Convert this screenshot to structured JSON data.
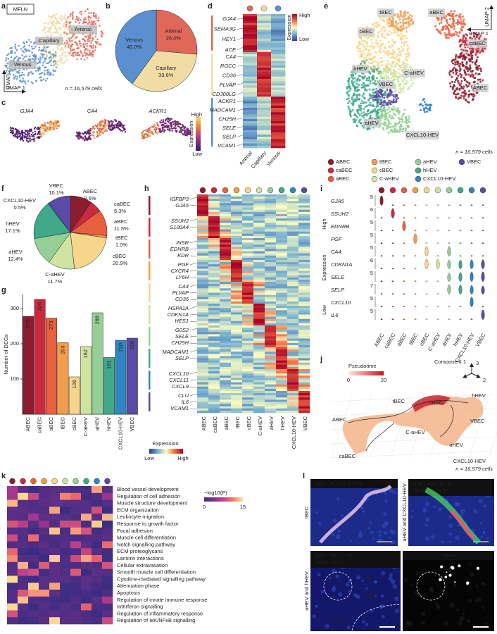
{
  "panels": {
    "a": {
      "letter": "a",
      "box": "MFLN",
      "clusters": [
        "Arterial",
        "Capillary",
        "Venous"
      ],
      "x_axis": "UMAP 1",
      "y_axis": "UMAP 2",
      "n": "n = 16,579 cells"
    },
    "b": {
      "letter": "b"
    },
    "c": {
      "letter": "c",
      "genes": [
        "GJA4",
        "CA4",
        "ACKR1"
      ],
      "legend_title": "Expression",
      "high": "High",
      "low": "Low"
    },
    "d": {
      "letter": "d",
      "gene_groups": [
        [
          "GJA4",
          "SEMA3G",
          "HEY1",
          "ACE"
        ],
        [
          "CA4",
          "RGCC",
          "CD36",
          "PLVAP",
          "CD300LG"
        ],
        [
          "ACKR1",
          "MADCAM1",
          "CH25H",
          "SELE",
          "SELP",
          "VCAM1"
        ]
      ],
      "columns": [
        "Arterial",
        "Capillary",
        "Venous"
      ],
      "legend_title": "Expression",
      "high": "High",
      "low": "Low"
    },
    "e": {
      "letter": "e",
      "labels": [
        "tBEC",
        "aBEC",
        "cBEC",
        "caBEC",
        "hHEV",
        "C-aHEV",
        "VBEC",
        "aHEV",
        "ABEC",
        "CXCL10-HEV"
      ],
      "x_axis": "UMAP 1",
      "y_axis": "UMAP 2",
      "n": "n = 16,579 cells",
      "legend": [
        "ABEC",
        "tBEC",
        "aHEV",
        "VBEC",
        "caBEC",
        "cBEC",
        "hHEV",
        "aBEC",
        "C-aHEV",
        "CXCL10-HEV"
      ]
    },
    "f": {
      "letter": "f"
    },
    "g": {
      "letter": "g"
    },
    "h": {
      "letter": "h",
      "gene_groups": [
        [
          "IGFBP3",
          "GJA5"
        ],
        [
          "SSUH2",
          "S100A4"
        ],
        [
          "INSR",
          "EDNRB",
          "KDR"
        ],
        [
          "PGF",
          "CXCR4",
          "LY6H"
        ],
        [
          "CA4",
          "PLVAP",
          "CD36"
        ],
        [
          "HSPA1A",
          "CDKN1A",
          "HES1"
        ],
        [
          "G0S2",
          "SELE",
          "CH25H"
        ],
        [
          "MADCAM1",
          "SELP"
        ],
        [
          "CXCL10",
          "CXCL11",
          "CXCL9"
        ],
        [
          "CLU",
          "IL6",
          "VCAM1"
        ]
      ],
      "columns": [
        "ABEC",
        "caBEC",
        "aBEC",
        "tBEC",
        "cBEC",
        "C-aHEV",
        "aHEV",
        "hHEV",
        "CXCL10-HEV",
        "VBEC"
      ],
      "legend_title": "Expression",
      "low": "Low",
      "high": "High"
    },
    "i": {
      "letter": "i",
      "genes": [
        "GJA5",
        "SSUH2",
        "EDNRB",
        "PGF",
        "CA4",
        "CDKN1A",
        "SELE",
        "SELP",
        "CXCL10",
        "IL6"
      ],
      "ymax": [
        5,
        6,
        5,
        5,
        5,
        6,
        5,
        7,
        5,
        5
      ],
      "columns": [
        "ABEC",
        "caBEC",
        "aBEC",
        "tBEC",
        "cBEC",
        "C-aHEV",
        "aHEV",
        "hHEV",
        "CXCL10-HEV",
        "VBEC"
      ],
      "y_axis_low": "Low",
      "y_axis": "Expression",
      "y_axis_high": "High"
    },
    "j": {
      "letter": "j",
      "legend_title": "Pseudotime",
      "legend_ticks": [
        0,
        20
      ],
      "component_labels": [
        "Component 1",
        "3",
        "2"
      ],
      "labels": [
        "ABEC",
        "caBEC",
        "tBEC",
        "cBEC",
        "C-aHEV",
        "aHEV",
        "hHEV",
        "VBEC",
        "CXCL10-HEV"
      ],
      "n": "n = 16,579 cells"
    },
    "k": {
      "letter": "k",
      "terms": [
        "Blood vessel development",
        "Regulation of cell adhesion",
        "Muscle structure development",
        "ECM organization",
        "Leukocyte migration",
        "Response to growth factor",
        "Focal adhesion",
        "Muscle cell differentiation",
        "Notch signalling pathway",
        "ECM proteoglycans",
        "Laminin interactions",
        "Cellular extravasation",
        "Smooth muscle cell differentiation",
        "Cytokine-mediated signalling pathway",
        "Attenuation phase",
        "Apoptosis",
        "Regulation of innate immune response",
        "Interferon signalling",
        "Regulation of inflammatory response",
        "Regulation of IκK/NFκB signalling"
      ],
      "legend_title": "−log10(P)",
      "legend_ticks": [
        0,
        15
      ]
    },
    "l": {
      "letter": "l",
      "images": [
        {
          "stains": [
            [
              "DAPI",
              "PLVAP",
              "LY6H"
            ]
          ],
          "side": "tBEC"
        },
        {
          "stains": [
            [
              "DAPI",
              "MECA-79"
            ],
            [
              "SELE",
              "CXCL10"
            ]
          ],
          "side": "aHEV and CXCL10-HEV"
        },
        {
          "stains": [
            [
              "DAPI",
              "MECA-79"
            ],
            [
              "SELE",
              "CD31"
            ]
          ],
          "side": "aHEV and hHEV",
          "regions": [
            "IFR",
            "Follicle",
            "T-zone"
          ]
        },
        {
          "stains": [
            [
              "SELE"
            ]
          ]
        }
      ]
    }
  },
  "chart_data": [
    {
      "type": "pie",
      "categories": [
        "Arterial",
        "Capillary",
        "Venous"
      ],
      "values": [
        26.4,
        33.6,
        40.0
      ],
      "value_labels": [
        "26.4%",
        "33.6%",
        "40.0%"
      ],
      "colors": [
        "#e0685a",
        "#f0dca4",
        "#5b8fd0"
      ]
    },
    {
      "type": "pie",
      "categories": [
        "ABEC",
        "caBEC",
        "aBEC",
        "tBEC",
        "cBEC",
        "C-aHEV",
        "aHEV",
        "hHEV",
        "CXCL10-HEV",
        "VBEC"
      ],
      "values": [
        9.6,
        5.3,
        11.5,
        1.0,
        20.9,
        11.7,
        12.4,
        17.1,
        0.5,
        10.1
      ],
      "value_labels": [
        "9.6%",
        "5.3%",
        "11.5%",
        "1.0%",
        "20.9%",
        "11.7%",
        "12.4%",
        "17.1%",
        "0.5%",
        "10.1%"
      ],
      "colors": [
        "#8c1c2e",
        "#c92a3e",
        "#e9603f",
        "#f39c4c",
        "#f6d68a",
        "#cfe3a2",
        "#96cf95",
        "#3fa98a",
        "#2f86c0",
        "#5b4aa6"
      ]
    },
    {
      "type": "bar",
      "ylabel": "Number of DEGs",
      "categories": [
        "ABEC",
        "caBEC",
        "aBEC",
        "tBEC",
        "cBEC",
        "C-aHEV",
        "aHEV",
        "hHEV",
        "CXCL10-HEV",
        "VBEC"
      ],
      "values": [
        278,
        326,
        273,
        203,
        106,
        192,
        288,
        161,
        210,
        216
      ],
      "colors": [
        "#8c1c2e",
        "#c92a3e",
        "#e9603f",
        "#f39c4c",
        "#f6d68a",
        "#cfe3a2",
        "#96cf95",
        "#3fa98a",
        "#2f86c0",
        "#5b4aa6"
      ],
      "ylim": [
        0,
        340
      ],
      "yticks": [
        100,
        200,
        300
      ]
    }
  ]
}
